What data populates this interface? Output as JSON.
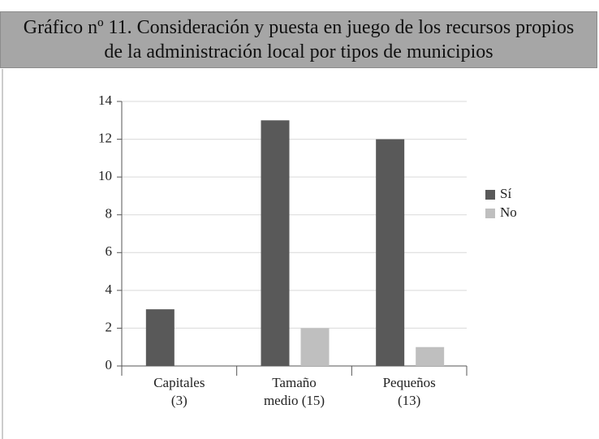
{
  "chart_data": {
    "type": "bar",
    "title": "Gráfico nº 11. Consideración y puesta en juego de los recursos propios de la administración local por tipos de municipios",
    "categories": [
      [
        "Capitales",
        "(3)"
      ],
      [
        "Tamaño",
        "medio (15)"
      ],
      [
        "Pequeños",
        "(13)"
      ]
    ],
    "series": [
      {
        "name": "Sí",
        "color": "#595959",
        "values": [
          3,
          13,
          12
        ]
      },
      {
        "name": "No",
        "color": "#bfbfbf",
        "values": [
          0,
          2,
          1
        ]
      }
    ],
    "ylim": [
      0,
      14
    ],
    "yticks": [
      0,
      2,
      4,
      6,
      8,
      10,
      12,
      14
    ],
    "grid": true,
    "legend": "right"
  }
}
